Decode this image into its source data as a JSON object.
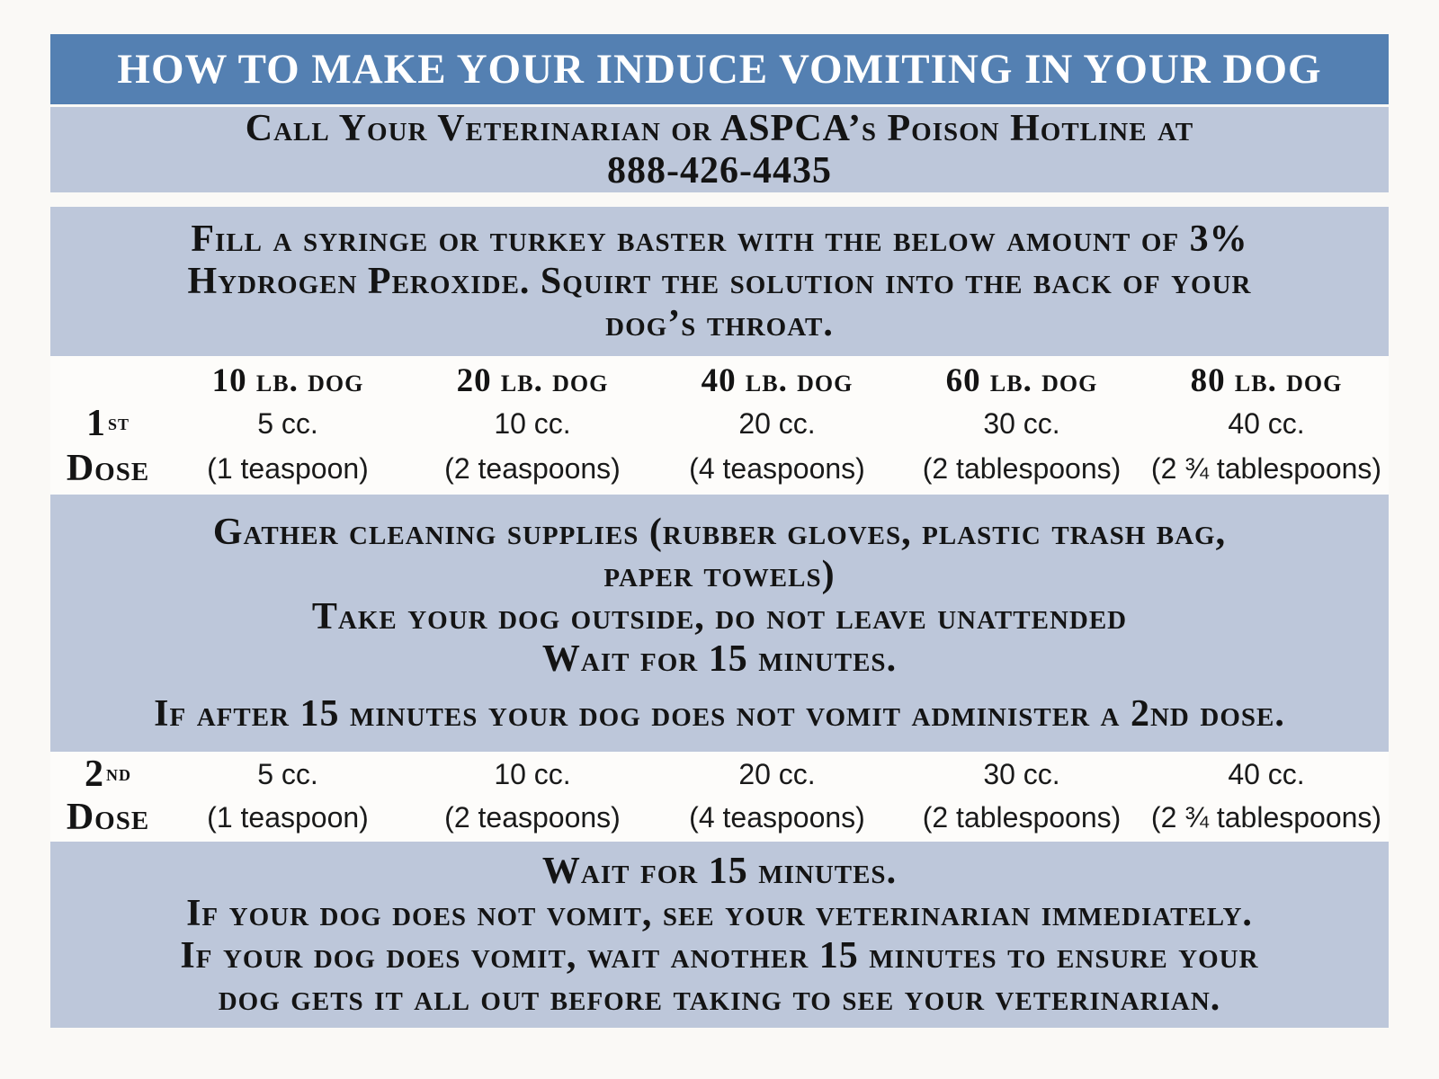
{
  "colors": {
    "title_bg": "#5480b2",
    "band_bg": "#bdc7da",
    "page_bg": "#faf9f6",
    "table_bg": "#fdfcfa",
    "title_text": "#ffffff",
    "body_text": "#141414"
  },
  "title_banner": {
    "text": "HOW TO MAKE YOUR INDUCE VOMITING IN YOUR DOG"
  },
  "hotline_banner": {
    "line1": "Call Your Veterinarian or ASPCA’s Poison Hotline at",
    "phone": "888-426-4435"
  },
  "fill_instructions": {
    "lines": [
      "Fill a syringe or turkey baster with the below amount of 3%",
      "Hydrogen Peroxide. Squirt the solution into the back of your",
      "dog’s throat."
    ]
  },
  "dose_table": {
    "columns": [
      "10 lb. dog",
      "20 lb. dog",
      "40 lb. dog",
      "60 lb. dog",
      "80 lb. dog"
    ],
    "first_dose": {
      "label": {
        "number": "1",
        "ordinal": "st",
        "word": "Dose"
      },
      "amounts": [
        "5 cc.",
        "10 cc.",
        "20 cc.",
        "30 cc.",
        "40 cc."
      ],
      "equivalents": [
        "(1 teaspoon)",
        "(2 teaspoons)",
        "(4 teaspoons)",
        "(2 tablespoons)",
        "(2 ¾ tablespoons)"
      ]
    },
    "second_dose": {
      "label": {
        "number": "2",
        "ordinal": "nd",
        "word": "Dose"
      },
      "amounts": [
        "5 cc.",
        "10 cc.",
        "20 cc.",
        "30 cc.",
        "40 cc."
      ],
      "equivalents": [
        "(1 teaspoon)",
        "(2 teaspoons)",
        "(4 teaspoons)",
        "(2 tablespoons)",
        "(2 ¾ tablespoons)"
      ]
    }
  },
  "after_first_dose": {
    "lines": [
      "Gather cleaning supplies (rubber gloves, plastic trash bag,",
      "paper towels)",
      "Take your dog outside, do not leave unattended",
      "Wait for 15 minutes."
    ],
    "note": "If after 15 minutes your dog does not vomit administer a 2nd dose."
  },
  "after_second_dose": {
    "lines": [
      "Wait for 15 minutes.",
      "If your dog does not vomit, see your veterinarian immediately.",
      "If your dog does vomit, wait another 15 minutes to ensure your",
      "dog gets it all out before taking to see your veterinarian."
    ]
  }
}
